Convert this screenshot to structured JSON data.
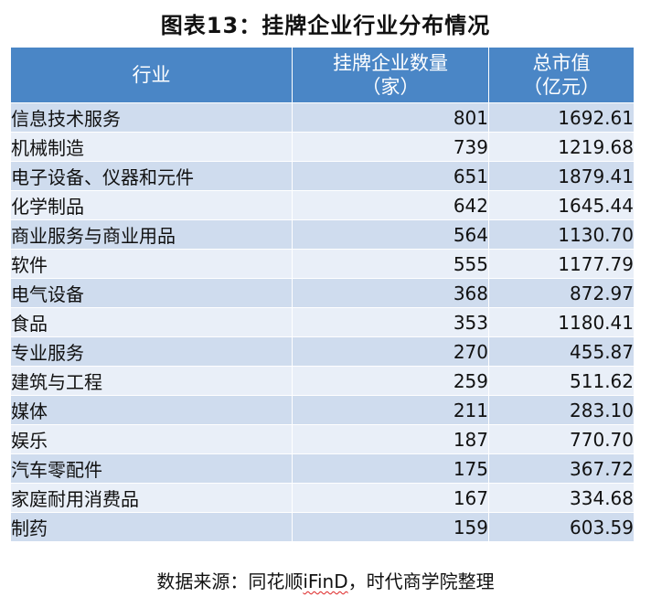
{
  "title": "图表13：挂牌企业行业分布情况",
  "table": {
    "headers": {
      "industry": "行业",
      "count_line1": "挂牌企业数量",
      "count_line2": "（家）",
      "value_line1": "总市值",
      "value_line2": "（亿元）"
    },
    "rows": [
      {
        "industry": "信息技术服务",
        "count": "801",
        "value": "1692.61"
      },
      {
        "industry": "机械制造",
        "count": "739",
        "value": "1219.68"
      },
      {
        "industry": "电子设备、仪器和元件",
        "count": "651",
        "value": "1879.41"
      },
      {
        "industry": "化学制品",
        "count": "642",
        "value": "1645.44"
      },
      {
        "industry": "商业服务与商业用品",
        "count": "564",
        "value": "1130.70"
      },
      {
        "industry": "软件",
        "count": "555",
        "value": "1177.79"
      },
      {
        "industry": "电气设备",
        "count": "368",
        "value": "872.97"
      },
      {
        "industry": "食品",
        "count": "353",
        "value": "1180.41"
      },
      {
        "industry": "专业服务",
        "count": "270",
        "value": "455.87"
      },
      {
        "industry": "建筑与工程",
        "count": "259",
        "value": "511.62"
      },
      {
        "industry": "媒体",
        "count": "211",
        "value": "283.10"
      },
      {
        "industry": "娱乐",
        "count": "187",
        "value": "770.70"
      },
      {
        "industry": "汽车零配件",
        "count": "175",
        "value": "367.72"
      },
      {
        "industry": "家庭耐用消费品",
        "count": "167",
        "value": "334.68"
      },
      {
        "industry": "制药",
        "count": "159",
        "value": "603.59"
      }
    ]
  },
  "source": {
    "prefix": "数据来源：同花顺",
    "brand": "iFinD",
    "suffix": "，时代商学院整理"
  },
  "colors": {
    "header_bg": "#4a86c6",
    "row_odd": "#cfdcee",
    "row_even": "#e9eff8"
  }
}
